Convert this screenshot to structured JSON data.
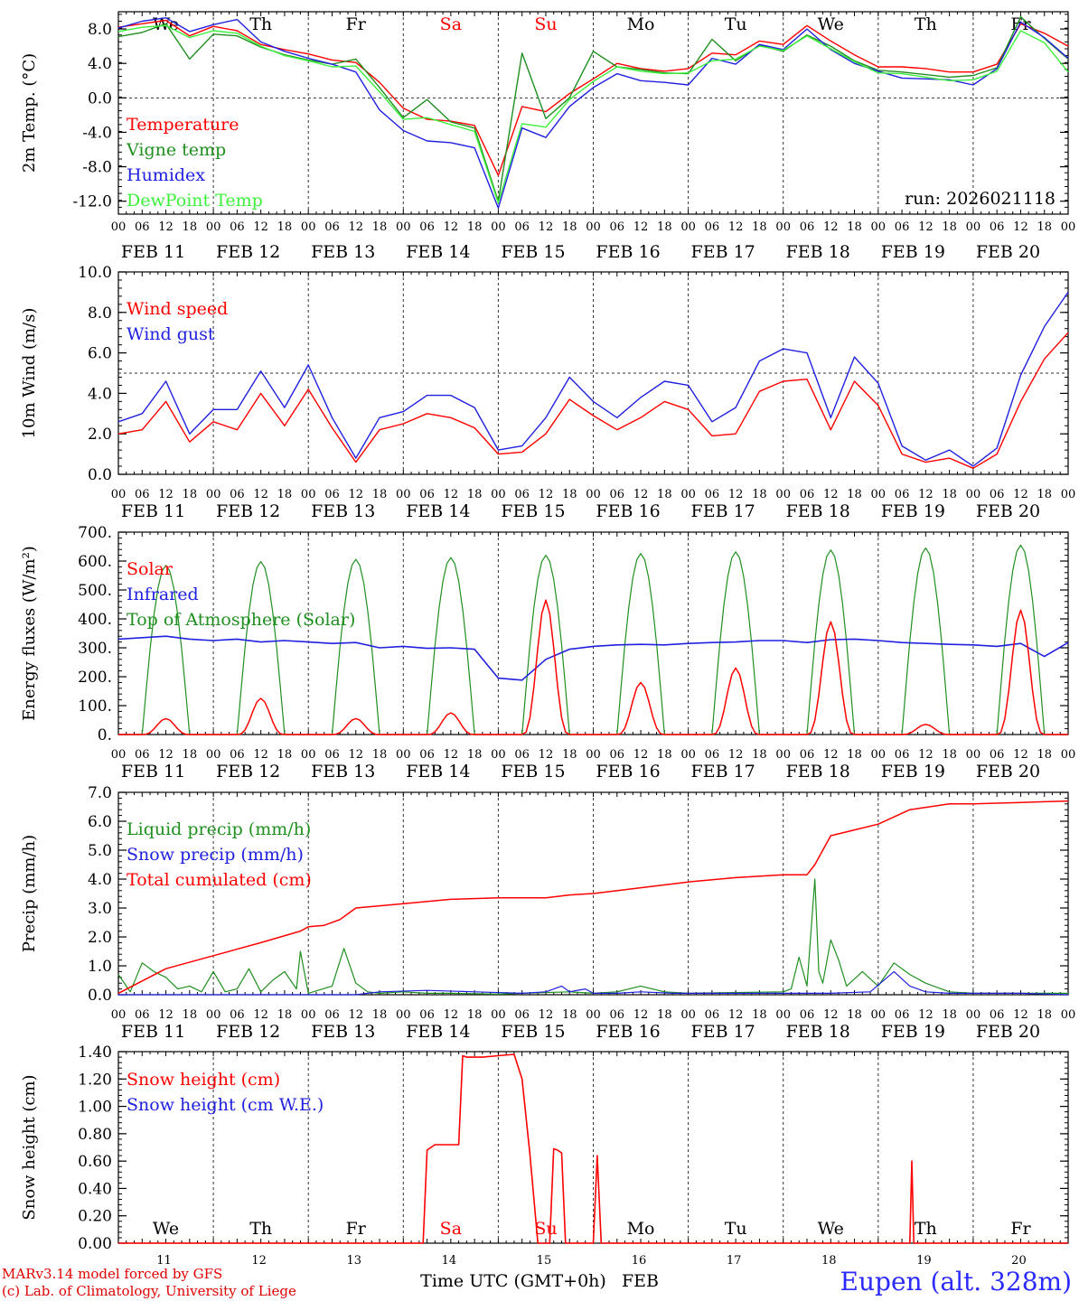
{
  "run_label": "run: 2026021118",
  "station": "Eupen (alt. 328m)",
  "credit_model": "MARv3.14 model forced by GFS",
  "credit_lab": "(c) Lab. of Climatology, University of Liege",
  "x_axis_title": "Time UTC (GMT+0h)",
  "month_label": "FEB",
  "hour_ticks": [
    "00",
    "06",
    "12",
    "18"
  ],
  "last_tick": "00",
  "day_labels": [
    "FEB 11",
    "FEB 12",
    "FEB 13",
    "FEB 14",
    "FEB 15",
    "FEB 16",
    "FEB 17",
    "FEB 18",
    "FEB 19",
    "FEB 20"
  ],
  "day_numbers": [
    "11",
    "12",
    "13",
    "14",
    "15",
    "16",
    "17",
    "18",
    "19",
    "20"
  ],
  "weekdays": [
    "We",
    "Th",
    "Fr",
    "Sa",
    "Su",
    "Mo",
    "Tu",
    "We",
    "Th",
    "Fr"
  ],
  "weekend_flags": [
    false,
    false,
    false,
    true,
    true,
    false,
    false,
    false,
    false,
    false
  ],
  "colors": {
    "red": "#ff0000",
    "green": "#1f8f1f",
    "blue": "#2020e0",
    "lime": "#3cf03c",
    "weekend": "#ff0000",
    "text": "#000000"
  },
  "chart_data": [
    {
      "id": "temperature",
      "type": "line",
      "ylabel": "2m Temp. (°C)",
      "ylim": [
        -13.5,
        10.0
      ],
      "yticks": [
        -12.0,
        -8.0,
        -4.0,
        0.0,
        4.0,
        8.0
      ],
      "ytick_labels": [
        "-12.0",
        "-8.0",
        "-4.0",
        "0.0",
        "4.0",
        "8.0"
      ],
      "reference_line": 0.0,
      "x_hours": [
        0,
        6,
        12,
        18,
        24,
        30,
        36,
        42,
        48,
        54,
        60,
        66,
        72,
        78,
        84,
        90,
        96,
        102,
        108,
        114,
        120,
        126,
        132,
        138,
        144,
        150,
        156,
        162,
        168,
        174,
        180,
        186,
        192,
        198,
        204,
        210,
        216,
        222,
        228,
        234,
        240
      ],
      "series": [
        {
          "name": "Temperature",
          "color": "red",
          "values": [
            8.2,
            8.6,
            9.0,
            7.2,
            8.3,
            7.8,
            6.2,
            5.6,
            5.1,
            4.4,
            4.1,
            1.8,
            -1.2,
            -2.5,
            -2.7,
            -3.2,
            -9.0,
            -1.0,
            -1.6,
            0.5,
            2.2,
            4.0,
            3.4,
            3.1,
            3.4,
            5.2,
            5.0,
            6.6,
            6.2,
            8.4,
            6.6,
            5.0,
            3.6,
            3.6,
            3.4,
            3.0,
            3.0,
            3.9,
            8.6,
            7.5,
            6.0
          ]
        },
        {
          "name": "Vigne temp",
          "color": "green",
          "values": [
            7.1,
            7.6,
            8.6,
            4.5,
            7.4,
            7.2,
            5.9,
            5.0,
            4.4,
            3.9,
            4.5,
            1.2,
            -2.3,
            -0.2,
            -2.8,
            -3.5,
            -12.0,
            5.2,
            -2.4,
            0.0,
            5.4,
            3.6,
            3.3,
            2.9,
            2.8,
            6.8,
            4.3,
            6.1,
            5.4,
            7.3,
            6.0,
            4.3,
            3.2,
            3.0,
            2.7,
            2.4,
            2.6,
            3.5,
            9.4,
            6.9,
            4.5
          ]
        },
        {
          "name": "Humidex",
          "color": "blue",
          "values": [
            8.1,
            8.9,
            9.3,
            7.7,
            8.5,
            9.1,
            6.5,
            5.4,
            4.6,
            3.9,
            3.0,
            -1.4,
            -3.8,
            -5.0,
            -5.2,
            -5.8,
            -12.8,
            -3.5,
            -4.6,
            -1.0,
            1.2,
            2.8,
            2.0,
            1.8,
            1.5,
            4.6,
            3.9,
            6.2,
            5.6,
            8.0,
            5.6,
            4.0,
            3.1,
            2.3,
            2.2,
            2.1,
            1.5,
            3.4,
            8.8,
            7.0,
            4.6
          ]
        },
        {
          "name": "DewPoint Temp",
          "color": "lime",
          "values": [
            7.7,
            8.2,
            8.4,
            7.0,
            7.8,
            7.5,
            6.0,
            4.9,
            4.3,
            3.6,
            3.7,
            0.7,
            -2.5,
            -2.3,
            -3.1,
            -3.9,
            -12.2,
            -3.0,
            -3.4,
            -0.2,
            1.9,
            3.6,
            3.1,
            2.8,
            2.9,
            4.3,
            4.5,
            6.0,
            5.5,
            7.2,
            5.7,
            4.2,
            2.9,
            2.8,
            2.4,
            2.0,
            2.1,
            3.1,
            7.8,
            6.4,
            3.0
          ]
        }
      ]
    },
    {
      "id": "wind",
      "type": "line",
      "ylabel": "10m Wind (m/s)",
      "ylim": [
        0,
        10.0
      ],
      "yticks": [
        0.0,
        2.0,
        4.0,
        6.0,
        8.0,
        10.0
      ],
      "ytick_labels": [
        "0.0",
        "2.0",
        "4.0",
        "6.0",
        "8.0",
        "10.0"
      ],
      "reference_line": 5.0,
      "x_hours": [
        0,
        6,
        12,
        18,
        24,
        30,
        36,
        42,
        48,
        54,
        60,
        66,
        72,
        78,
        84,
        90,
        96,
        102,
        108,
        114,
        120,
        126,
        132,
        138,
        144,
        150,
        156,
        162,
        168,
        174,
        180,
        186,
        192,
        198,
        204,
        210,
        216,
        222,
        228,
        234,
        240
      ],
      "series": [
        {
          "name": "Wind speed",
          "color": "red",
          "values": [
            2.0,
            2.2,
            3.6,
            1.6,
            2.6,
            2.2,
            4.0,
            2.4,
            4.2,
            2.3,
            0.6,
            2.2,
            2.5,
            3.0,
            2.8,
            2.3,
            1.0,
            1.1,
            2.0,
            3.7,
            2.9,
            2.2,
            2.8,
            3.6,
            3.2,
            1.9,
            2.0,
            4.1,
            4.6,
            4.7,
            2.2,
            4.6,
            3.4,
            1.0,
            0.6,
            0.8,
            0.3,
            1.0,
            3.6,
            5.7,
            7.0
          ]
        },
        {
          "name": "Wind gust",
          "color": "blue",
          "values": [
            2.6,
            3.0,
            4.6,
            2.0,
            3.2,
            3.2,
            5.1,
            3.3,
            5.4,
            2.8,
            0.8,
            2.8,
            3.1,
            3.9,
            3.9,
            3.3,
            1.2,
            1.4,
            2.8,
            4.8,
            3.6,
            2.8,
            3.8,
            4.6,
            4.4,
            2.6,
            3.3,
            5.6,
            6.2,
            6.0,
            2.8,
            5.8,
            4.5,
            1.4,
            0.7,
            1.2,
            0.4,
            1.3,
            4.9,
            7.3,
            9.0
          ]
        }
      ]
    },
    {
      "id": "energy",
      "type": "line",
      "ylabel": "Energy fluxes (W/m²)",
      "ylim": [
        0,
        700
      ],
      "yticks": [
        0,
        100,
        200,
        300,
        400,
        500,
        600,
        700
      ],
      "ytick_labels": [
        "0.",
        "100.",
        "200.",
        "300.",
        "400.",
        "500.",
        "600.",
        "700."
      ],
      "reference_line": null,
      "toa_peaks": [
        585,
        598,
        606,
        612,
        620,
        626,
        632,
        638,
        645,
        655
      ],
      "solar_peaks": [
        55,
        125,
        55,
        75,
        465,
        180,
        230,
        390,
        35,
        430
      ],
      "infrared_values": [
        330,
        335,
        340,
        330,
        325,
        330,
        320,
        325,
        320,
        315,
        318,
        300,
        305,
        298,
        300,
        295,
        195,
        188,
        260,
        295,
        305,
        310,
        312,
        310,
        315,
        318,
        320,
        325,
        325,
        318,
        328,
        330,
        325,
        318,
        315,
        312,
        310,
        305,
        315,
        270,
        318
      ],
      "series": [
        {
          "name": "Solar",
          "color": "red"
        },
        {
          "name": "Infrared",
          "color": "blue"
        },
        {
          "name": "Top of Atmosphere (Solar)",
          "color": "green"
        }
      ]
    },
    {
      "id": "precip",
      "type": "line",
      "ylabel": "Precip (mm/h)",
      "ylim": [
        0,
        7.0
      ],
      "yticks": [
        0.0,
        1.0,
        2.0,
        3.0,
        4.0,
        5.0,
        6.0,
        7.0
      ],
      "ytick_labels": [
        "0.0",
        "1.0",
        "2.0",
        "3.0",
        "4.0",
        "5.0",
        "6.0",
        "7.0"
      ],
      "reference_line": null,
      "cumulated_x": [
        0,
        12,
        24,
        36,
        46,
        48,
        52,
        56,
        60,
        72,
        84,
        96,
        108,
        114,
        120,
        132,
        144,
        156,
        168,
        174,
        176,
        180,
        186,
        192,
        200,
        210,
        216,
        228,
        240
      ],
      "cumulated_values": [
        0.05,
        0.9,
        1.35,
        1.8,
        2.2,
        2.35,
        2.4,
        2.6,
        3.0,
        3.15,
        3.3,
        3.35,
        3.35,
        3.45,
        3.5,
        3.7,
        3.9,
        4.05,
        4.15,
        4.15,
        4.5,
        5.5,
        5.7,
        5.9,
        6.4,
        6.6,
        6.6,
        6.65,
        6.7
      ],
      "liquid_x": [
        0,
        3,
        6,
        9,
        12,
        15,
        18,
        21,
        24,
        27,
        30,
        33,
        36,
        39,
        42,
        45,
        46,
        48,
        54,
        57,
        60,
        63,
        66,
        72,
        78,
        84,
        96,
        102,
        114,
        120,
        126,
        132,
        138,
        144,
        168,
        170,
        172,
        174,
        176,
        177,
        178,
        180,
        182,
        184,
        188,
        192,
        196,
        200,
        204,
        210,
        216,
        228,
        240
      ],
      "liquid_values": [
        0.7,
        0.1,
        1.1,
        0.8,
        0.6,
        0.2,
        0.3,
        0.1,
        0.8,
        0.1,
        0.2,
        0.9,
        0.1,
        0.5,
        0.8,
        0.2,
        1.5,
        0.05,
        0.3,
        1.6,
        0.4,
        0.1,
        0.05,
        0.1,
        0.05,
        0.05,
        0.02,
        0.05,
        0.1,
        0.05,
        0.1,
        0.3,
        0.1,
        0.05,
        0.1,
        0.2,
        1.3,
        0.3,
        4.0,
        0.8,
        0.4,
        1.9,
        1.2,
        0.3,
        0.8,
        0.3,
        1.1,
        0.7,
        0.4,
        0.1,
        0.05,
        0.05,
        0.05
      ],
      "snow_x": [
        0,
        60,
        66,
        78,
        90,
        102,
        108,
        112,
        114,
        118,
        120,
        126,
        132,
        140,
        150,
        160,
        168,
        180,
        190,
        196,
        200,
        204,
        210,
        216,
        228,
        240
      ],
      "snow_values": [
        0,
        0,
        0.1,
        0.15,
        0.1,
        0.05,
        0.1,
        0.3,
        0.1,
        0.2,
        0.05,
        0.05,
        0.1,
        0.05,
        0.05,
        0.05,
        0.05,
        0.05,
        0.1,
        0.8,
        0.3,
        0.1,
        0.05,
        0.05,
        0.05,
        0
      ],
      "series": [
        {
          "name": "Liquid precip (mm/h)",
          "color": "green"
        },
        {
          "name": "Snow precip (mm/h)",
          "color": "blue"
        },
        {
          "name": "Total cumulated (cm)",
          "color": "red"
        }
      ]
    },
    {
      "id": "snow",
      "type": "line",
      "ylabel": "Snow height (cm)",
      "ylim": [
        0,
        1.4
      ],
      "yticks": [
        0.0,
        0.2,
        0.4,
        0.6,
        0.8,
        1.0,
        1.2,
        1.4
      ],
      "ytick_labels": [
        "0.00",
        "0.20",
        "0.40",
        "0.60",
        "0.80",
        "1.00",
        "1.20",
        "1.40"
      ],
      "reference_line": null,
      "x_hours": [
        0,
        77,
        78,
        80,
        84,
        86,
        87,
        88,
        92,
        96,
        100,
        102,
        104,
        106,
        109,
        110,
        111,
        112,
        113,
        118,
        120,
        121,
        122,
        123,
        123.5,
        124,
        200,
        200.5,
        201,
        201.5,
        240
      ],
      "values": [
        0,
        0,
        0.68,
        0.72,
        0.72,
        0.72,
        1.37,
        1.36,
        1.36,
        1.37,
        1.38,
        1.2,
        0.65,
        0,
        0,
        0.69,
        0.68,
        0.66,
        0,
        0,
        0,
        0.64,
        0,
        0,
        0,
        0,
        0,
        0.6,
        0,
        0,
        0
      ],
      "series": [
        {
          "name": "Snow height (cm)",
          "color": "red"
        },
        {
          "name": "Snow height (cm W.E.)",
          "color": "blue"
        }
      ]
    }
  ]
}
